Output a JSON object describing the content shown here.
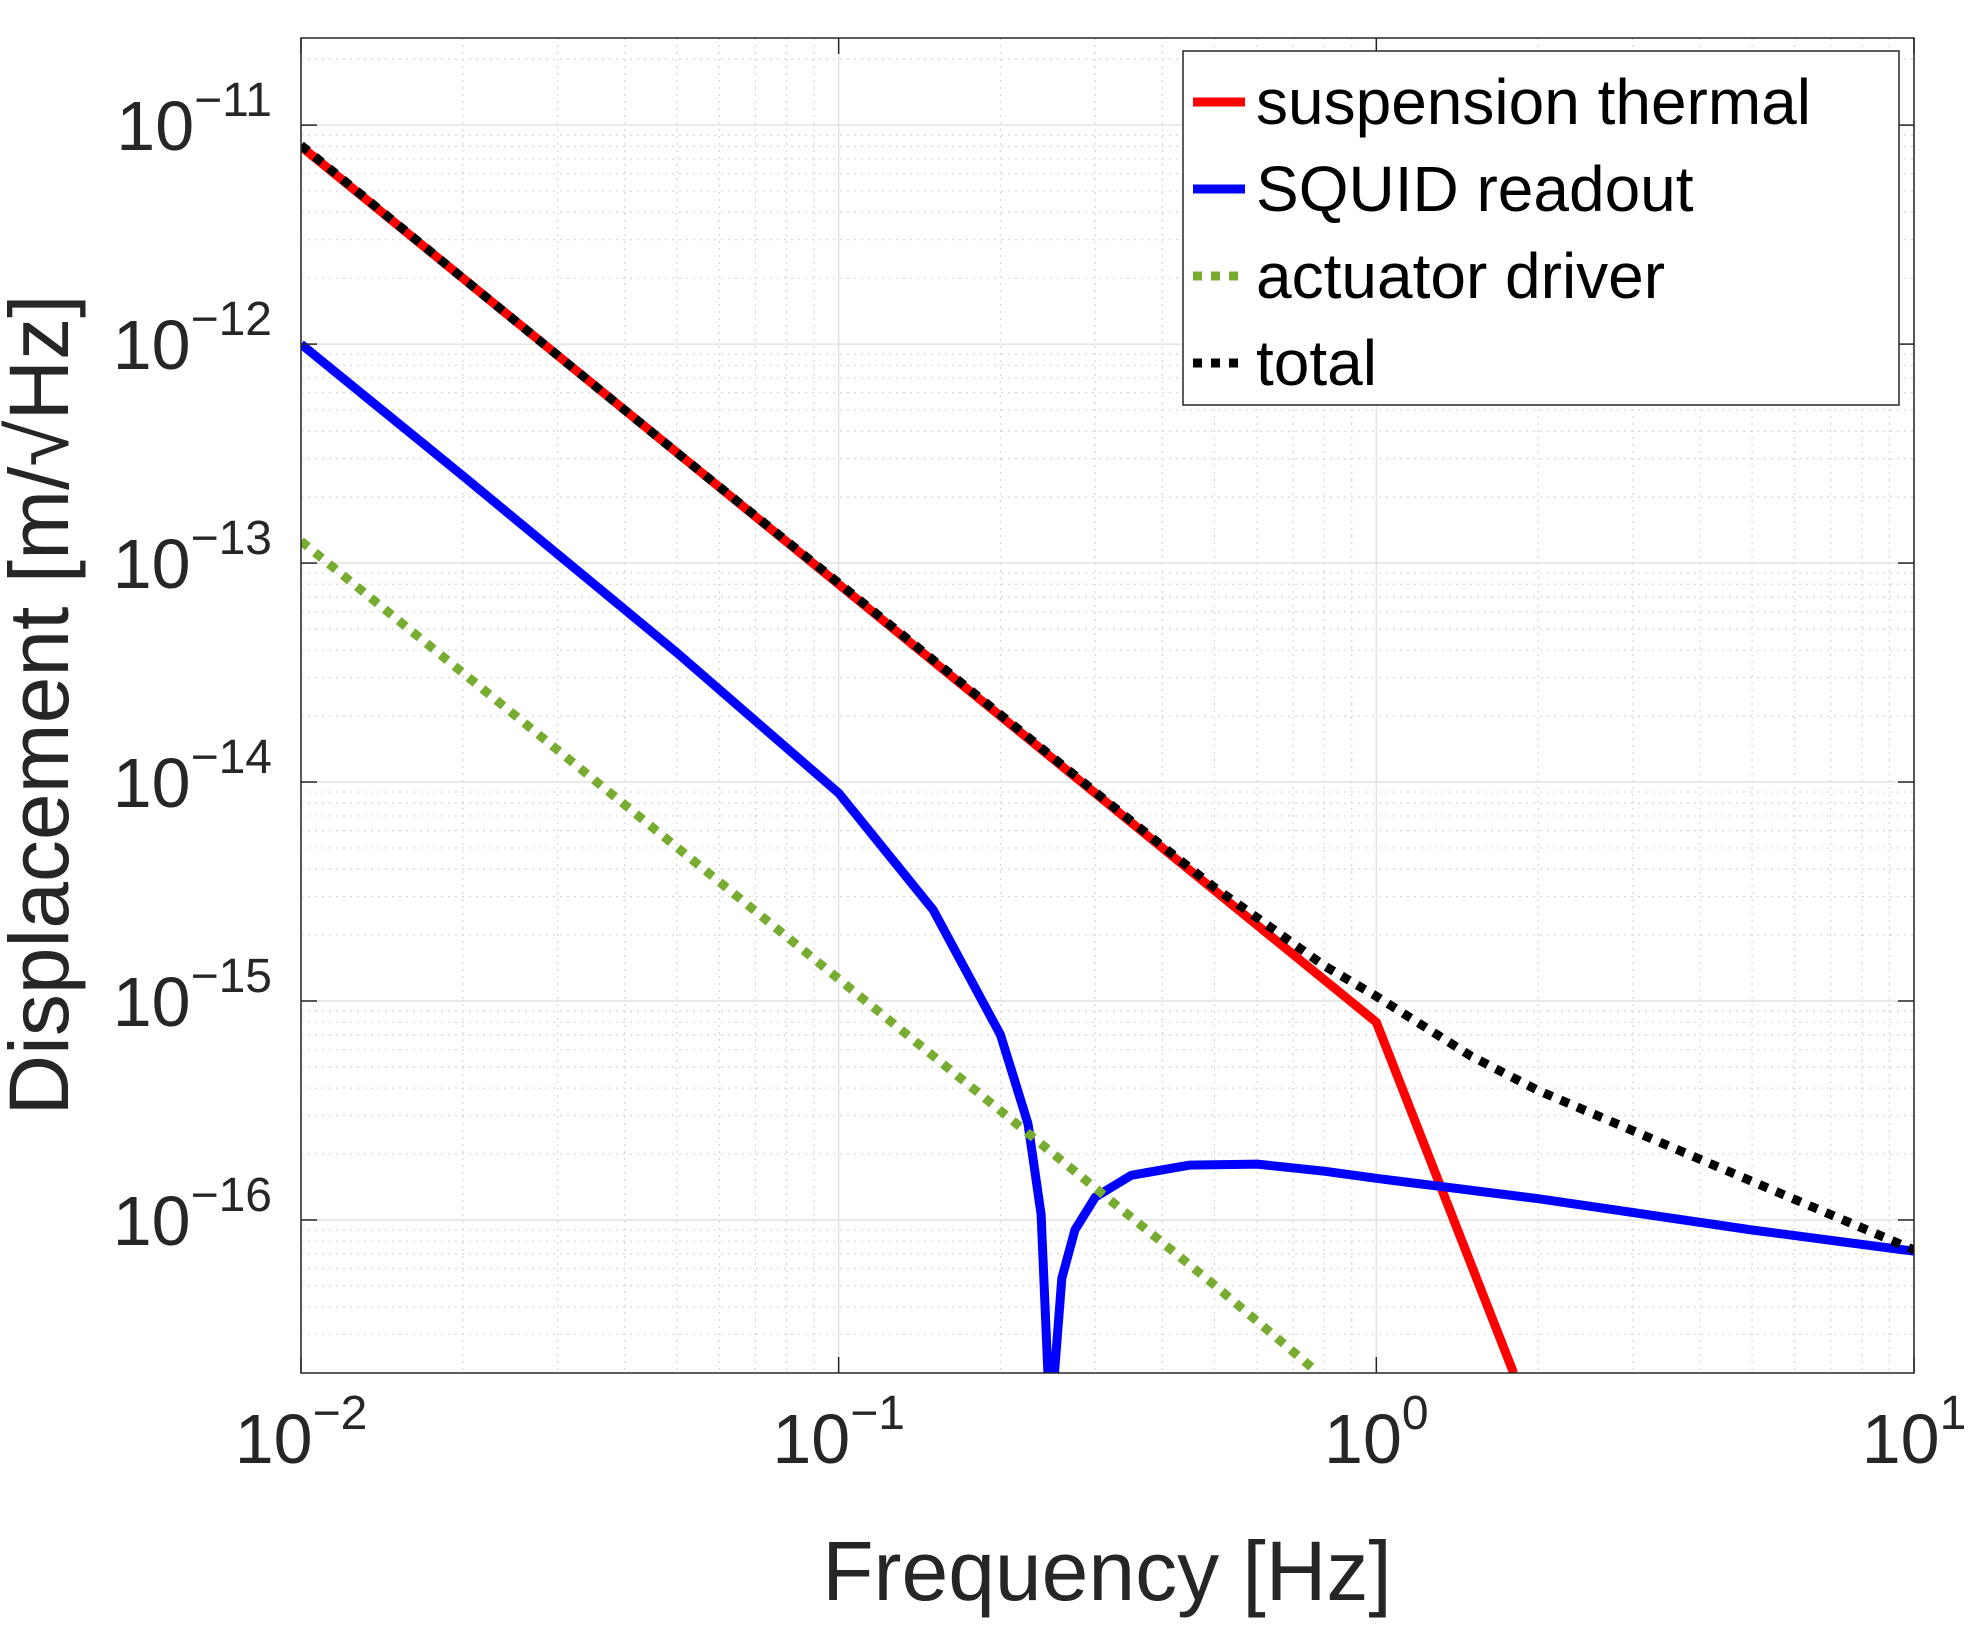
{
  "chart_data": {
    "type": "line",
    "xscale": "log",
    "yscale": "log",
    "xlabel": "Frequency [Hz]",
    "ylabel": "Displacement [m/√Hz]",
    "xlim": [
      0.01,
      10
    ],
    "ylim": [
      2e-17,
      2.5e-11
    ],
    "grid": true,
    "minor_grid": true,
    "legend_position": "top-right",
    "xticks": [
      {
        "base": "10",
        "exp": "-2",
        "value": 0.01
      },
      {
        "base": "10",
        "exp": "-1",
        "value": 0.1
      },
      {
        "base": "10",
        "exp": "0",
        "value": 1
      },
      {
        "base": "10",
        "exp": "1",
        "value": 10
      }
    ],
    "yticks": [
      {
        "base": "10",
        "exp": "-16",
        "value": 1e-16
      },
      {
        "base": "10",
        "exp": "-15",
        "value": 1e-15
      },
      {
        "base": "10",
        "exp": "-14",
        "value": 1e-14
      },
      {
        "base": "10",
        "exp": "-13",
        "value": 1e-13
      },
      {
        "base": "10",
        "exp": "-12",
        "value": 1e-12
      },
      {
        "base": "10",
        "exp": "-11",
        "value": 1e-11
      }
    ],
    "series": [
      {
        "name": "suspension thermal",
        "color": "#ff0000",
        "style": "solid",
        "x": [
          0.01,
          0.02,
          0.05,
          0.1,
          0.2,
          0.5,
          1,
          1.8
        ],
        "y": [
          8e-12,
          2e-12,
          3.2e-13,
          8e-14,
          2e-14,
          3.2e-15,
          8e-16,
          2e-17
        ]
      },
      {
        "name": "SQUID readout",
        "color": "#0000ff",
        "style": "solid",
        "x": [
          0.01,
          0.02,
          0.05,
          0.1,
          0.15,
          0.2,
          0.225,
          0.238,
          0.245,
          0.252,
          0.26,
          0.275,
          0.3,
          0.35,
          0.45,
          0.6,
          0.8,
          1,
          2,
          5,
          10
        ],
        "y": [
          1e-12,
          2.5e-13,
          3.9e-14,
          8.9e-15,
          2.6e-15,
          7e-16,
          2.75e-16,
          1.06e-16,
          2e-17,
          2e-17,
          5.4e-17,
          9e-17,
          1.27e-16,
          1.6e-16,
          1.78e-16,
          1.8e-16,
          1.67e-16,
          1.55e-16,
          1.25e-16,
          9e-17,
          7.2e-17
        ]
      },
      {
        "name": "actuator driver",
        "color": "#77ac30",
        "style": "dotted",
        "x": [
          0.01,
          0.02,
          0.05,
          0.1,
          0.2,
          0.5,
          0.78
        ],
        "y": [
          1.26e-13,
          3.15e-14,
          5.04e-15,
          1.26e-15,
          3.15e-16,
          5.04e-17,
          2e-17
        ]
      },
      {
        "name": "total",
        "color": "#000000",
        "style": "dotted",
        "x": [
          0.01,
          0.02,
          0.05,
          0.1,
          0.2,
          0.3,
          0.4,
          0.5,
          0.6,
          0.8,
          1,
          1.5,
          2,
          5,
          10
        ],
        "y": [
          8.1e-12,
          2e-12,
          3.2e-13,
          8.1e-14,
          2.03e-14,
          9e-15,
          5.1e-15,
          3.3e-15,
          2.4e-15,
          1.45e-15,
          1.05e-15,
          5.6e-16,
          3.9e-16,
          1.5e-16,
          7.3e-17
        ]
      }
    ]
  }
}
